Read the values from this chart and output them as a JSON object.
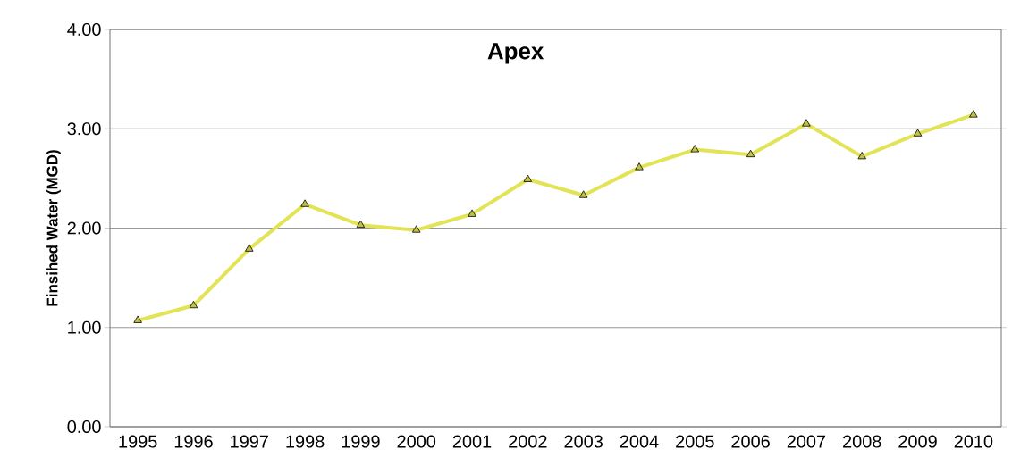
{
  "chart_data": {
    "type": "line",
    "title": "Apex",
    "ylabel": "Finsihed Water  (MGD)",
    "categories": [
      "1995",
      "1996",
      "1997",
      "1998",
      "1999",
      "2000",
      "2001",
      "2002",
      "2003",
      "2004",
      "2005",
      "2006",
      "2007",
      "2008",
      "2009",
      "2010"
    ],
    "values": [
      1.07,
      1.22,
      1.79,
      2.24,
      2.03,
      1.98,
      2.14,
      2.49,
      2.33,
      2.61,
      2.79,
      2.74,
      3.05,
      2.72,
      2.95,
      3.14
    ],
    "color": "#e3e356",
    "marker": "triangle",
    "line_style": "solid",
    "ylim": [
      0,
      4
    ],
    "yticks": [
      {
        "value": 0,
        "label": "0.00"
      },
      {
        "value": 1,
        "label": "1.00"
      },
      {
        "value": 2,
        "label": "2.00"
      },
      {
        "value": 3,
        "label": "3.00"
      },
      {
        "value": 4,
        "label": "4.00"
      }
    ],
    "grid": "y"
  }
}
